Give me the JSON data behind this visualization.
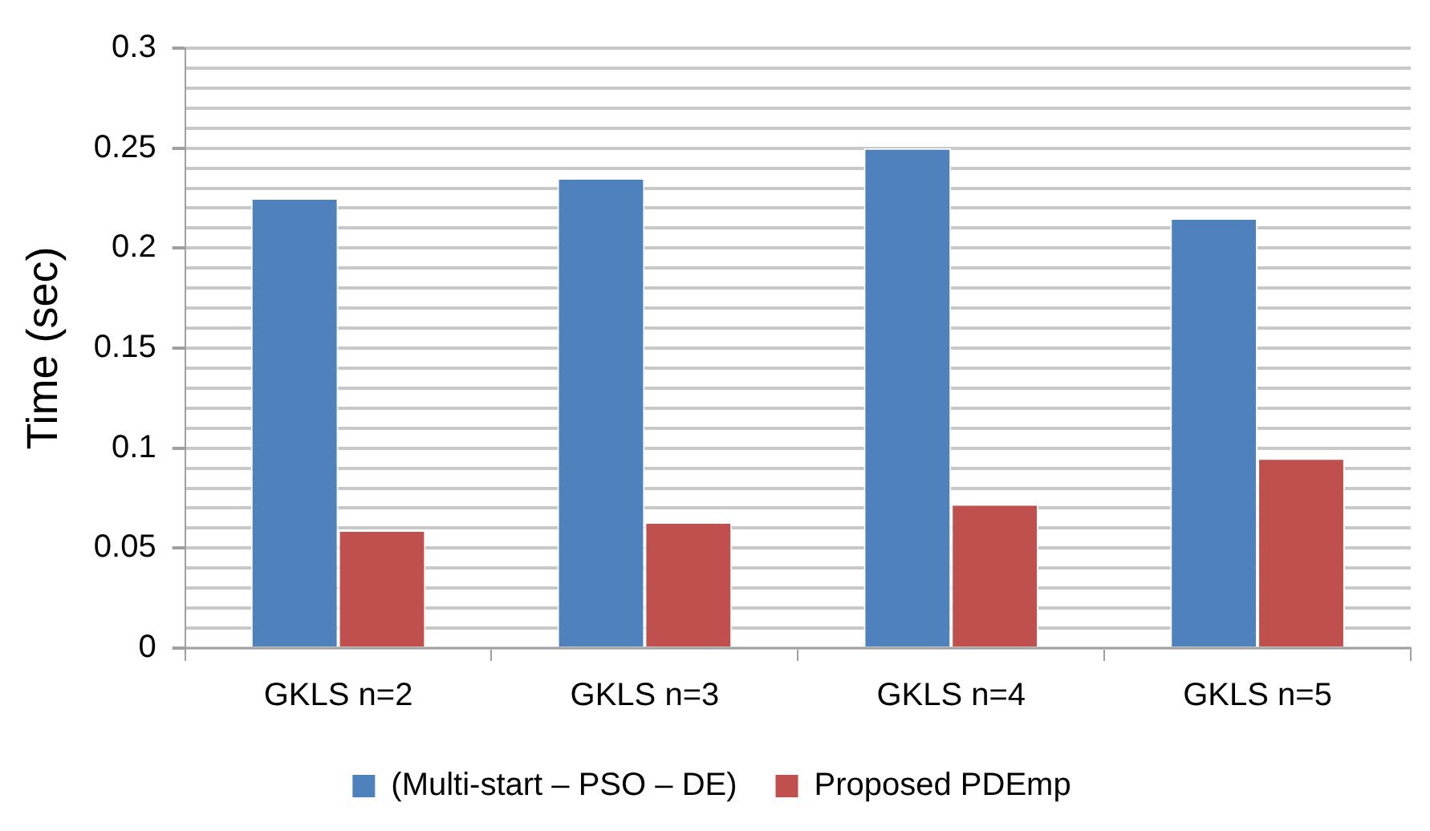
{
  "chart_data": {
    "type": "bar",
    "ylabel": "Time (sec)",
    "categories": [
      "GKLS n=2",
      "GKLS n=3",
      "GKLS n=4",
      "GKLS n=5"
    ],
    "series": [
      {
        "name": "(Multi-start – PSO – DE)",
        "color": "#4f81bd",
        "values": [
          0.225,
          0.235,
          0.25,
          0.215
        ]
      },
      {
        "name": "Proposed PDEmp",
        "color": "#c0504d",
        "values": [
          0.059,
          0.063,
          0.072,
          0.095
        ]
      }
    ],
    "ylim": [
      0,
      0.3
    ],
    "yticks": [
      0,
      {
        "value": 0.01,
        "label": null
      },
      {
        "value": 0.02,
        "label": null
      },
      {
        "value": 0.03,
        "label": null
      },
      {
        "value": 0.04,
        "label": null
      },
      0.05,
      {
        "value": 0.06,
        "label": null
      },
      {
        "value": 0.07,
        "label": null
      },
      {
        "value": 0.08,
        "label": null
      },
      {
        "value": 0.09,
        "label": null
      },
      0.1,
      {
        "value": 0.11,
        "label": null
      },
      {
        "value": 0.12,
        "label": null
      },
      {
        "value": 0.13,
        "label": null
      },
      {
        "value": 0.14,
        "label": null
      },
      0.15,
      {
        "value": 0.16,
        "label": null
      },
      {
        "value": 0.17,
        "label": null
      },
      {
        "value": 0.18,
        "label": null
      },
      {
        "value": 0.19,
        "label": null
      },
      0.2,
      {
        "value": 0.21,
        "label": null
      },
      {
        "value": 0.22,
        "label": null
      },
      {
        "value": 0.23,
        "label": null
      },
      {
        "value": 0.24,
        "label": null
      },
      0.25,
      {
        "value": 0.26,
        "label": null
      },
      {
        "value": 0.27,
        "label": null
      },
      {
        "value": 0.28,
        "label": null
      },
      {
        "value": 0.29,
        "label": null
      },
      0.3
    ],
    "grid": "y",
    "legend": "bottom"
  }
}
